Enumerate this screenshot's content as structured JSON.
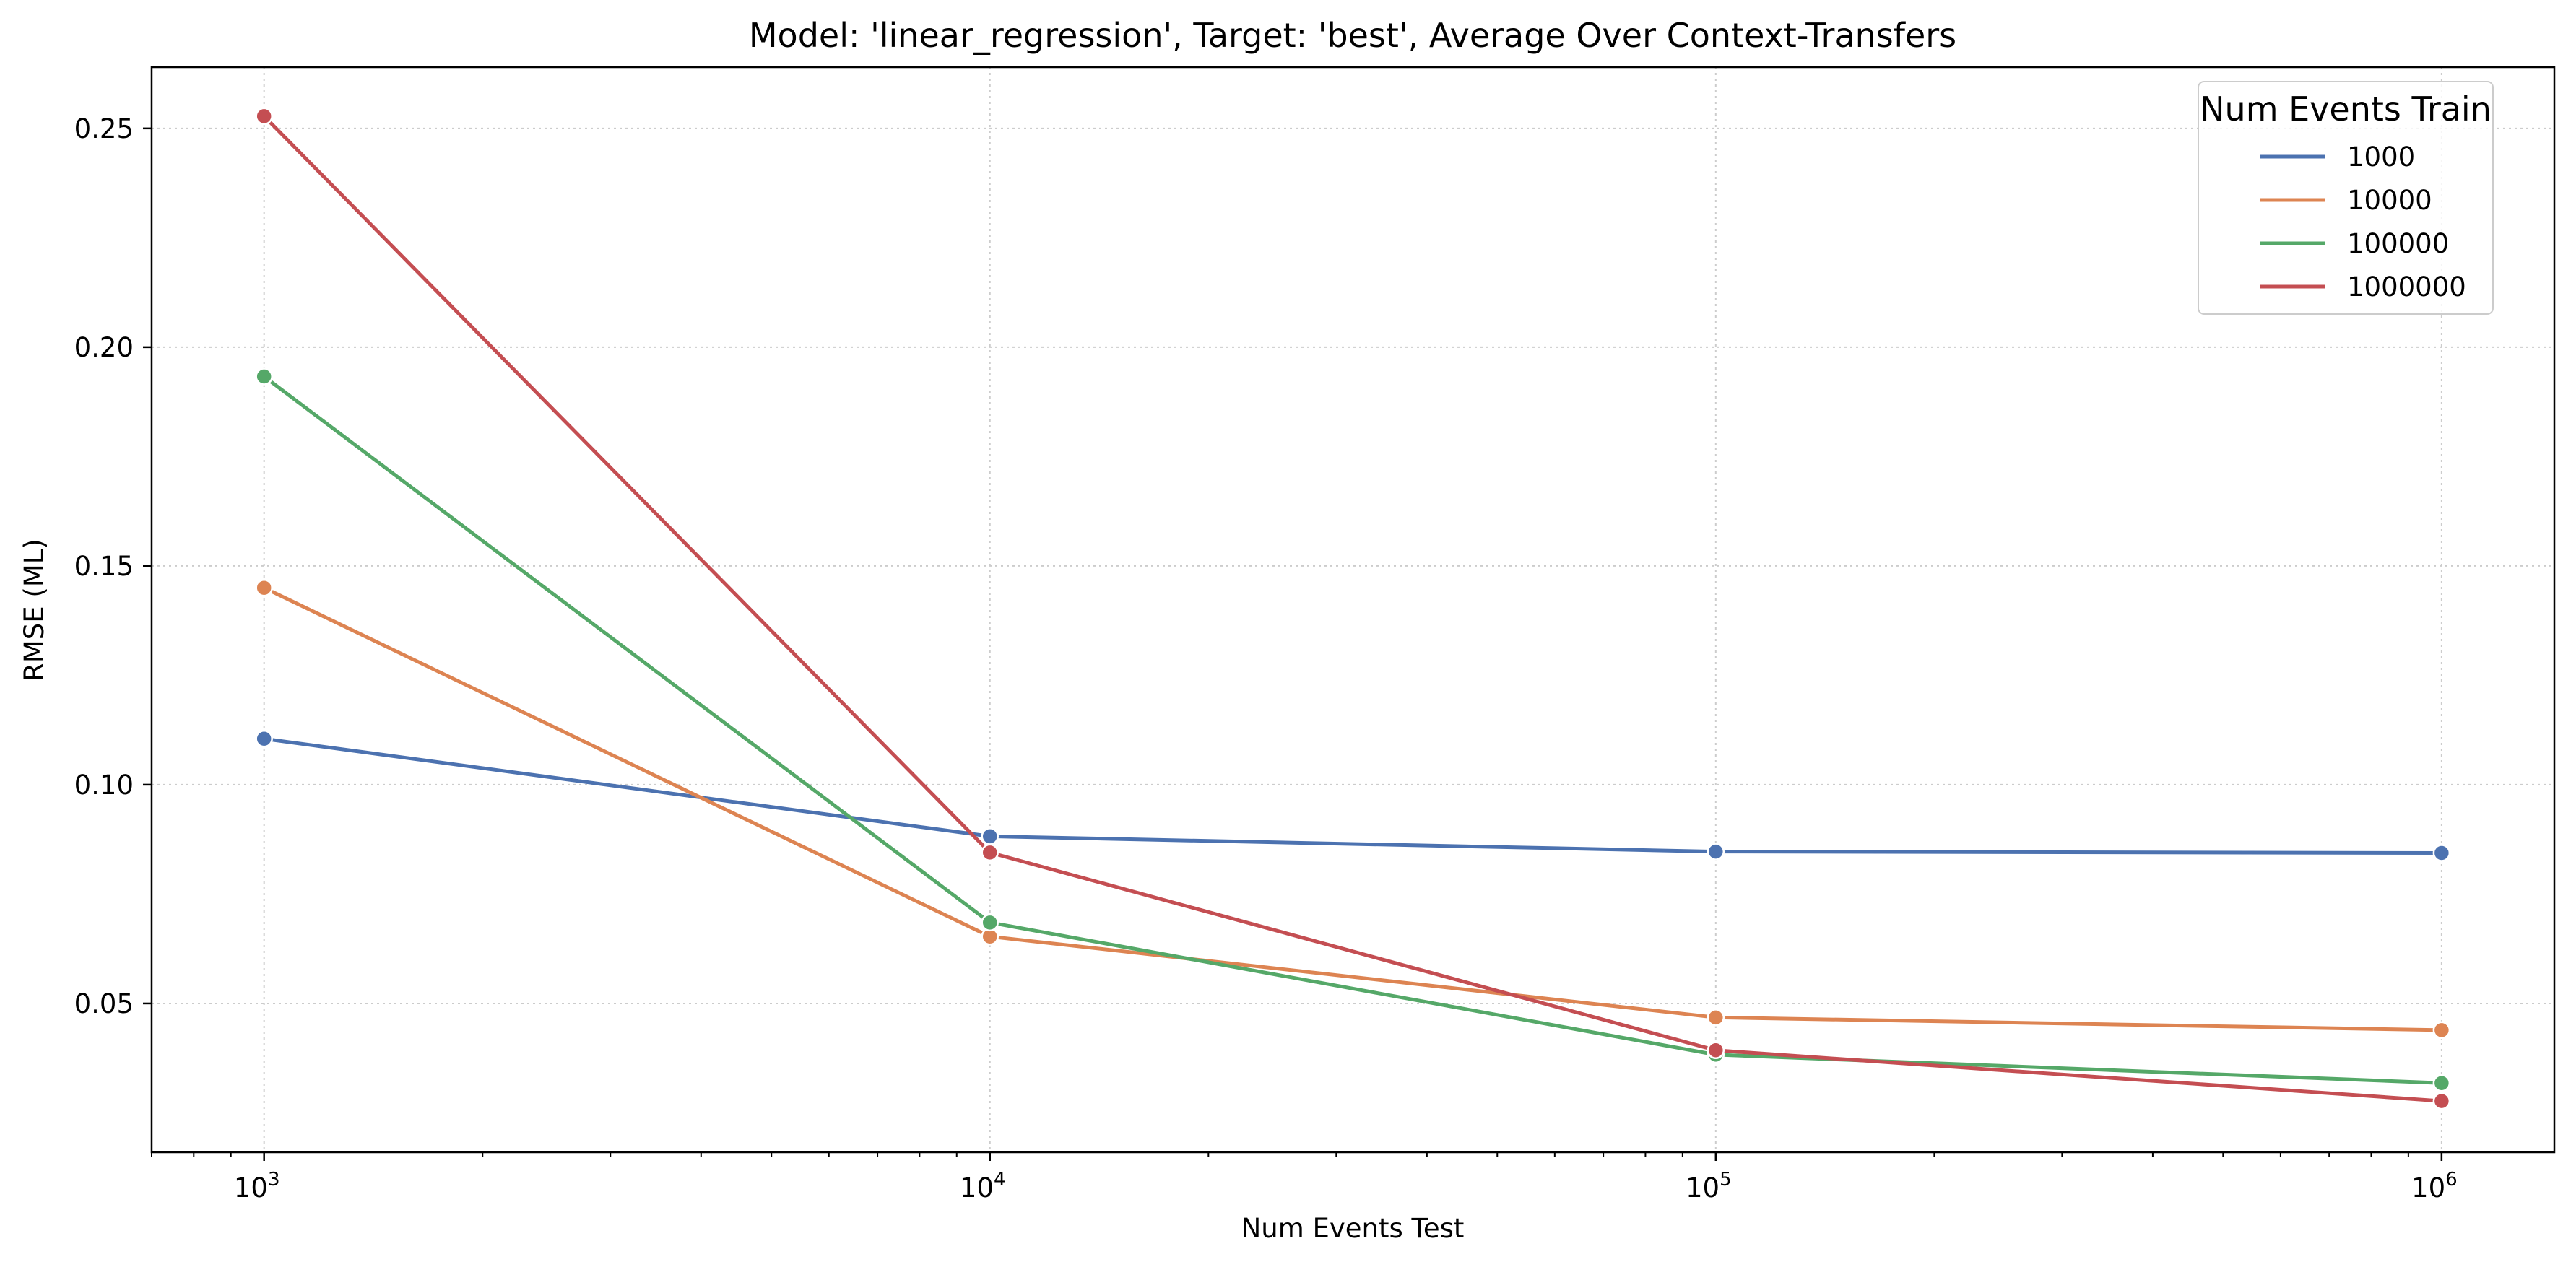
{
  "chart_data": {
    "type": "line",
    "title": "Model: 'linear_regression', Target: 'best', Average Over Context-Transfers",
    "xlabel": "Num Events Test",
    "ylabel": "RMSE (ML)",
    "xscale": "log",
    "x": [
      1000,
      10000,
      100000,
      1000000
    ],
    "xlim": [
      700,
      1430000
    ],
    "ylim": [
      0.016,
      0.264
    ],
    "x_ticks": [
      {
        "value": 1000,
        "base": "10",
        "exp": "3"
      },
      {
        "value": 10000,
        "base": "10",
        "exp": "4"
      },
      {
        "value": 100000,
        "base": "10",
        "exp": "5"
      },
      {
        "value": 1000000,
        "base": "10",
        "exp": "6"
      }
    ],
    "y_ticks": [
      {
        "value": 0.05,
        "label": "0.05"
      },
      {
        "value": 0.1,
        "label": "0.10"
      },
      {
        "value": 0.15,
        "label": "0.15"
      },
      {
        "value": 0.2,
        "label": "0.20"
      },
      {
        "value": 0.25,
        "label": "0.25"
      }
    ],
    "grid": true,
    "legend": {
      "title": "Num Events Train",
      "placement": "top-right"
    },
    "series": [
      {
        "name": "1000",
        "color": "#4c72b0",
        "values": [
          0.1105,
          0.0882,
          0.0847,
          0.0844
        ]
      },
      {
        "name": "10000",
        "color": "#dd8452",
        "values": [
          0.145,
          0.0653,
          0.0468,
          0.0439
        ]
      },
      {
        "name": "100000",
        "color": "#55a868",
        "values": [
          0.1933,
          0.0685,
          0.0383,
          0.0318
        ]
      },
      {
        "name": "1000000",
        "color": "#c44e52",
        "values": [
          0.2528,
          0.0845,
          0.0393,
          0.0277
        ]
      }
    ]
  }
}
